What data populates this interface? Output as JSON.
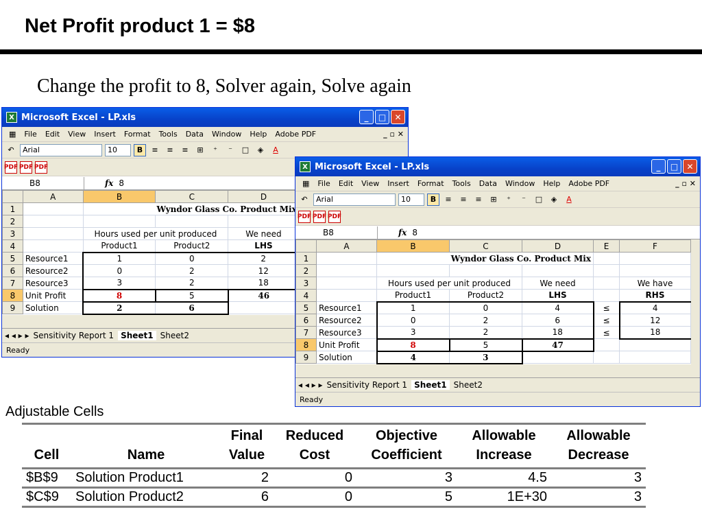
{
  "slide": {
    "title": "Net Profit product 1 = $8",
    "subtitle": "Change the profit to 8, Solver again, Solve again"
  },
  "excel": {
    "title": "Microsoft Excel - LP.xls",
    "menu": [
      "File",
      "Edit",
      "View",
      "Insert",
      "Format",
      "Tools",
      "Data",
      "Window",
      "Help",
      "Adobe PDF"
    ],
    "font_name": "Arial",
    "font_size": "10",
    "name_box": "B8",
    "formula": "8",
    "columns": [
      "A",
      "B",
      "C",
      "D",
      "E",
      "F"
    ],
    "sheet_title": "Wyndor Glass Co. Product Mix",
    "hours_header": "Hours used per unit produced",
    "we_need": "We need",
    "we_have": "We have",
    "product1": "Product1",
    "product2": "Product2",
    "lhs": "LHS",
    "rhs": "RHS",
    "leq": "≤",
    "rows": {
      "resource1": "Resource1",
      "resource2": "Resource2",
      "resource3": "Resource3",
      "unit_profit": "Unit Profit",
      "solution": "Solution"
    },
    "tabs": [
      "Sensitivity Report 1",
      "Sheet1",
      "Sheet2"
    ],
    "status": "Ready"
  },
  "window_back": {
    "data": {
      "r5": [
        "1",
        "0",
        "2"
      ],
      "r6": [
        "0",
        "2",
        "12"
      ],
      "r7": [
        "3",
        "2",
        "18"
      ],
      "r8": [
        "8",
        "5",
        "46"
      ],
      "r9": [
        "2",
        "6"
      ]
    }
  },
  "window_front": {
    "data": {
      "r5": [
        "1",
        "0",
        "4",
        "4"
      ],
      "r6": [
        "0",
        "2",
        "6",
        "12"
      ],
      "r7": [
        "3",
        "2",
        "18",
        "18"
      ],
      "r8": [
        "8",
        "5",
        "47"
      ],
      "r9": [
        "4",
        "3"
      ]
    }
  },
  "sensitivity": {
    "label": "Adjustable Cells",
    "headers": [
      [
        "",
        "Cell"
      ],
      [
        "",
        "Name"
      ],
      [
        "Final",
        "Value"
      ],
      [
        "Reduced",
        "Cost"
      ],
      [
        "Objective",
        "Coefficient"
      ],
      [
        "Allowable",
        "Increase"
      ],
      [
        "Allowable",
        "Decrease"
      ]
    ],
    "rows": [
      [
        "$B$9",
        "Solution Product1",
        "2",
        "0",
        "3",
        "4.5",
        "3"
      ],
      [
        "$C$9",
        "Solution Product2",
        "6",
        "0",
        "5",
        "1E+30",
        "3"
      ]
    ]
  }
}
